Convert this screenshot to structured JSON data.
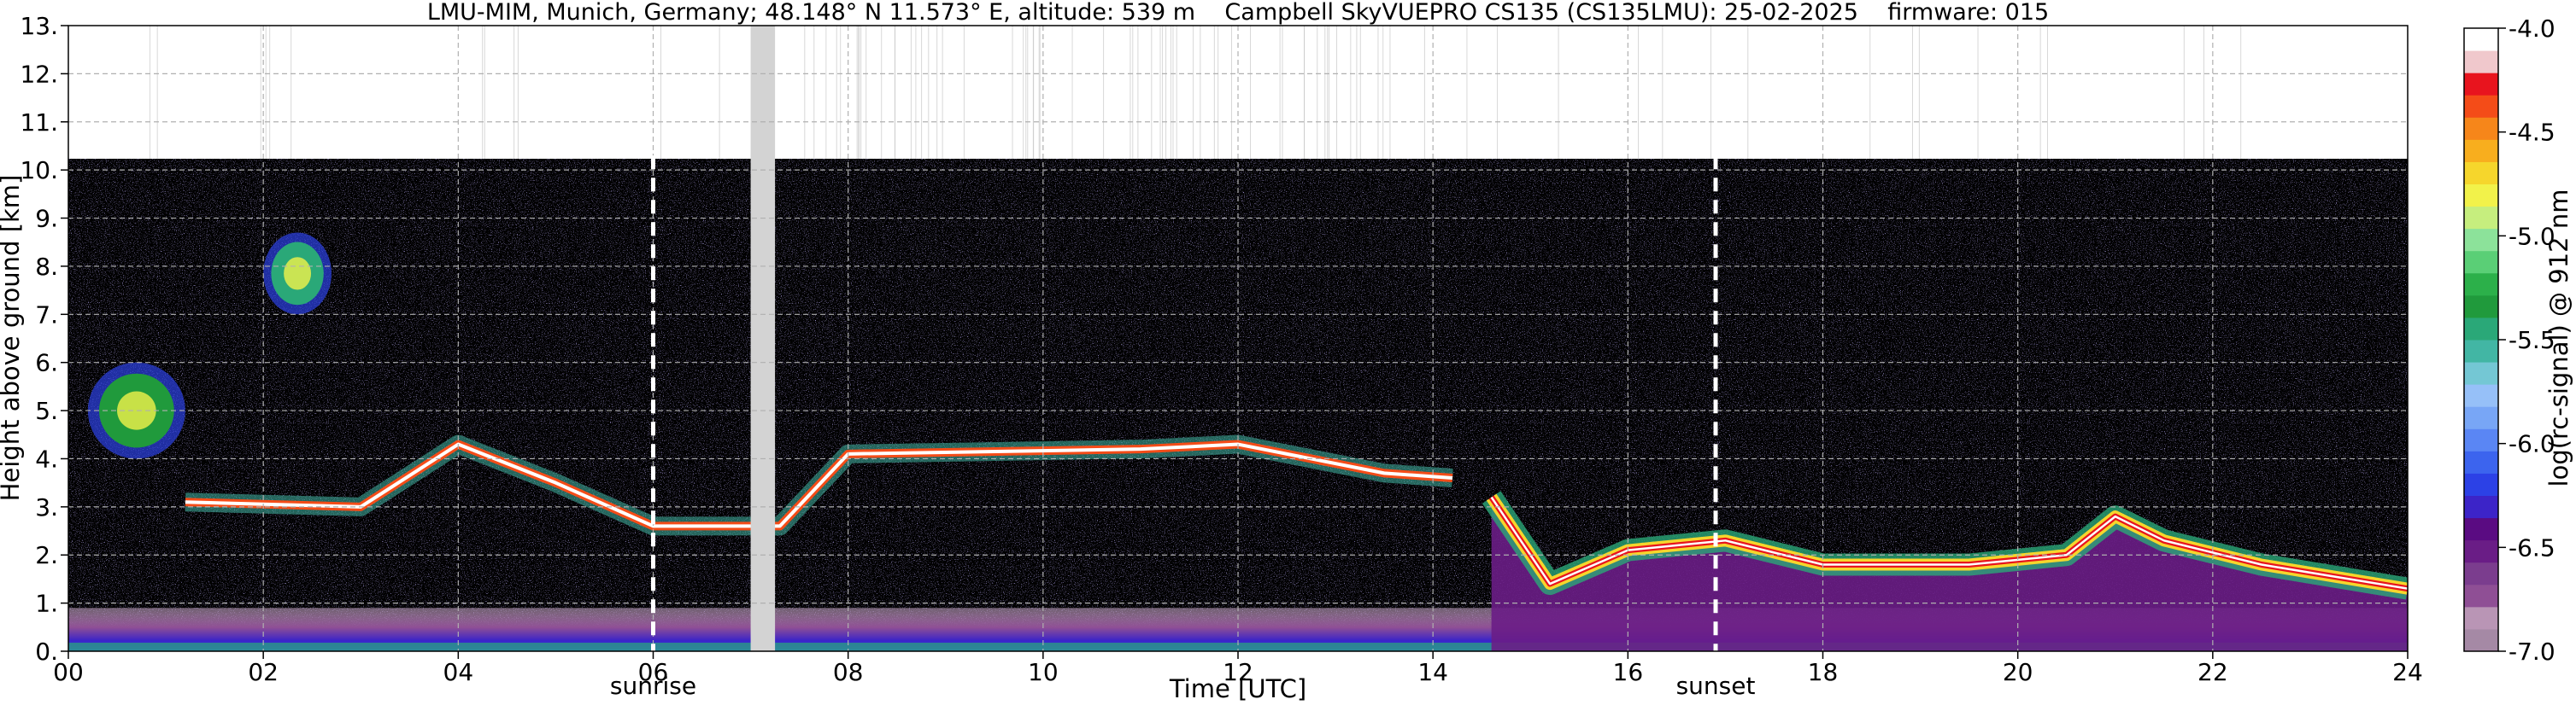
{
  "chart_data": {
    "type": "heatmap",
    "title": "LMU-MIM, Munich, Germany; 48.148° N 11.573° E, altitude: 539 m    Campbell SkyVUEPRO CS135 (CS135LMU): 25-02-2025    firmware: 015",
    "xlabel": "Time [UTC]",
    "ylabel": "Height above ground [km]",
    "xlim": [
      0,
      24
    ],
    "ylim": [
      0,
      13
    ],
    "x_ticks": [
      "00",
      "02",
      "04",
      "06",
      "08",
      "10",
      "12",
      "14",
      "16",
      "18",
      "20",
      "22",
      "24"
    ],
    "y_ticks": [
      "0.",
      "1.",
      "2.",
      "3.",
      "4.",
      "5.",
      "6.",
      "7.",
      "8.",
      "9.",
      "10.",
      "11.",
      "12.",
      "13."
    ],
    "grid": true,
    "data_top_km": 10.3,
    "annotations": [
      {
        "label": "sunrise",
        "time_utc": 6.0
      },
      {
        "label": "sunset",
        "time_utc": 16.9
      }
    ],
    "data_gap": {
      "start_utc": 7.0,
      "end_utc": 7.25
    },
    "layers": [
      {
        "name": "surface aerosol layer",
        "start_utc": 0.0,
        "end_utc": 24.0,
        "top_km": 0.9,
        "level": -6.3
      },
      {
        "name": "boundary layer (afternoon)",
        "points_utc_km": [
          [
            14.6,
            3.2
          ],
          [
            15.2,
            1.4
          ],
          [
            16.0,
            2.1
          ],
          [
            17.0,
            2.3
          ],
          [
            18.0,
            1.8
          ],
          [
            19.5,
            1.8
          ],
          [
            20.5,
            2.0
          ],
          [
            21.0,
            2.8
          ],
          [
            21.5,
            2.3
          ],
          [
            22.5,
            1.8
          ],
          [
            24.0,
            1.3
          ]
        ],
        "level": -4.6
      },
      {
        "name": "cloud layer",
        "points_utc_km": [
          [
            1.2,
            3.1
          ],
          [
            3.0,
            3.0
          ],
          [
            4.0,
            4.3
          ],
          [
            5.0,
            3.5
          ],
          [
            6.0,
            2.6
          ],
          [
            7.3,
            2.6
          ],
          [
            8.0,
            4.1
          ],
          [
            11.0,
            4.2
          ],
          [
            12.0,
            4.3
          ],
          [
            13.5,
            3.7
          ],
          [
            14.2,
            3.6
          ]
        ],
        "level": -4.0
      },
      {
        "name": "elevated aerosol plume",
        "start_utc": 0.2,
        "end_utc": 1.2,
        "bottom_km": 4.0,
        "top_km": 6.0,
        "level": -5.3
      },
      {
        "name": "high cloud",
        "start_utc": 2.0,
        "end_utc": 2.7,
        "bottom_km": 7.0,
        "top_km": 8.7,
        "level": -5.4
      }
    ],
    "colorbar": {
      "label": "log(rc-signal) @ 912 nm",
      "min": -7.0,
      "max": -4.0,
      "ticks": [
        "-4.0",
        "-4.5",
        "-5.0",
        "-5.5",
        "-6.0",
        "-6.5",
        "-7.0"
      ],
      "colors": [
        "#a589a5",
        "#b995b5",
        "#8f4f95",
        "#7b3d8e",
        "#6a1d86",
        "#5a0b82",
        "#3c24c8",
        "#2c41e6",
        "#3c64ee",
        "#5a86f4",
        "#78a6f6",
        "#96c0f8",
        "#74c7d4",
        "#42b6a4",
        "#2aa878",
        "#209a3c",
        "#2cb04a",
        "#5acf76",
        "#8ce29a",
        "#c6ee7e",
        "#f2f24a",
        "#f6d62c",
        "#f8ae1e",
        "#f6861a",
        "#f44c18",
        "#e8141e",
        "#f0c8cc",
        "#ffffff"
      ]
    }
  }
}
